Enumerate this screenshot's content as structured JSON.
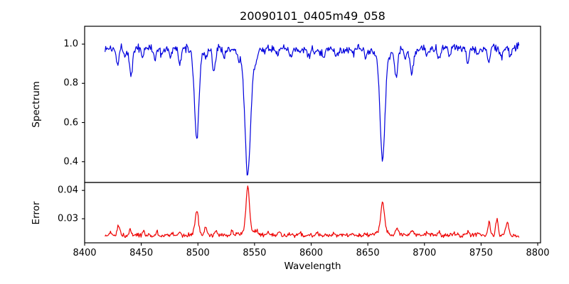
{
  "figure": {
    "title": "20090101_0405m49_058",
    "xlabel": "Wavelength",
    "background_color": "#ffffff",
    "axis_color": "#000000"
  },
  "chart_data": [
    {
      "type": "line",
      "name": "spectrum-panel",
      "title": "20090101_0405m49_058",
      "ylabel": "Spectrum",
      "xlabel": "Wavelength",
      "line_color": "#0000dd",
      "xlim": [
        8400,
        8802.5
      ],
      "ylim": [
        0.294,
        1.091
      ],
      "ytick_values": [
        1.0,
        0.8,
        0.6,
        0.4
      ],
      "ytick_labels": [
        "1.0",
        "0.8",
        "0.6",
        "0.4"
      ],
      "grid": false,
      "legend": null,
      "data_x_start": 8418,
      "data_x_end": 8784,
      "sample_step": 0.6,
      "continuum_level": 0.976,
      "noise_amplitude": 0.013,
      "absorption_lines": [
        {
          "center": 8429,
          "depth": 0.075,
          "width": 1.2
        },
        {
          "center": 8436,
          "depth": 0.04,
          "width": 1.0
        },
        {
          "center": 8441,
          "depth": 0.15,
          "width": 1.4
        },
        {
          "center": 8451,
          "depth": 0.045,
          "width": 1.0
        },
        {
          "center": 8462,
          "depth": 0.05,
          "width": 1.1
        },
        {
          "center": 8468,
          "depth": 0.04,
          "width": 1.0
        },
        {
          "center": 8476,
          "depth": 0.04,
          "width": 1.0
        },
        {
          "center": 8484,
          "depth": 0.085,
          "width": 1.3
        },
        {
          "center": 8499,
          "depth": 0.43,
          "width": 1.9
        },
        {
          "center": 8499,
          "depth": 0.04,
          "width": 4.5
        },
        {
          "center": 8507,
          "depth": 0.05,
          "width": 1.1
        },
        {
          "center": 8514,
          "depth": 0.12,
          "width": 1.4
        },
        {
          "center": 8523,
          "depth": 0.05,
          "width": 1.0
        },
        {
          "center": 8536,
          "depth": 0.04,
          "width": 1.0
        },
        {
          "center": 8544,
          "depth": 0.6,
          "width": 2.4
        },
        {
          "center": 8544,
          "depth": 0.05,
          "width": 6.0
        },
        {
          "center": 8551,
          "depth": 0.04,
          "width": 1.2
        },
        {
          "center": 8570,
          "depth": 0.035,
          "width": 1.0
        },
        {
          "center": 8582,
          "depth": 0.05,
          "width": 1.2
        },
        {
          "center": 8598,
          "depth": 0.04,
          "width": 1.0
        },
        {
          "center": 8611,
          "depth": 0.035,
          "width": 1.0
        },
        {
          "center": 8622,
          "depth": 0.035,
          "width": 1.0
        },
        {
          "center": 8637,
          "depth": 0.03,
          "width": 1.0
        },
        {
          "center": 8648,
          "depth": 0.045,
          "width": 1.1
        },
        {
          "center": 8663,
          "depth": 0.52,
          "width": 2.1
        },
        {
          "center": 8663,
          "depth": 0.05,
          "width": 5.0
        },
        {
          "center": 8675,
          "depth": 0.135,
          "width": 1.4
        },
        {
          "center": 8683,
          "depth": 0.05,
          "width": 1.0
        },
        {
          "center": 8689,
          "depth": 0.12,
          "width": 1.5
        },
        {
          "center": 8702,
          "depth": 0.04,
          "width": 1.0
        },
        {
          "center": 8713,
          "depth": 0.05,
          "width": 1.1
        },
        {
          "center": 8722,
          "depth": 0.04,
          "width": 1.0
        },
        {
          "center": 8738,
          "depth": 0.075,
          "width": 1.3
        },
        {
          "center": 8747,
          "depth": 0.04,
          "width": 1.0
        },
        {
          "center": 8757,
          "depth": 0.07,
          "width": 1.2
        },
        {
          "center": 8768,
          "depth": 0.05,
          "width": 1.0
        },
        {
          "center": 8776,
          "depth": 0.055,
          "width": 1.2
        }
      ],
      "notable_features": "Ca II infrared triplet absorption lines near 8499, 8544, 8663 with minima ~0.51, ~0.33, ~0.41"
    },
    {
      "type": "line",
      "name": "error-panel",
      "ylabel": "Error",
      "line_color": "#ee0000",
      "xlim": [
        8400,
        8802.5
      ],
      "ylim": [
        0.0215,
        0.0428
      ],
      "ytick_values": [
        0.04,
        0.03
      ],
      "ytick_labels": [
        "0.04",
        "0.03"
      ],
      "grid": false,
      "legend": null,
      "data_x_start": 8418,
      "data_x_end": 8784,
      "sample_step": 0.6,
      "baseline_level": 0.0242,
      "noise_amplitude": 0.00045,
      "emission_peaks": [
        {
          "center": 8423,
          "height": 0.0008,
          "width": 1.0
        },
        {
          "center": 8430,
          "height": 0.0036,
          "width": 1.1
        },
        {
          "center": 8440,
          "height": 0.0018,
          "width": 1.1
        },
        {
          "center": 8452,
          "height": 0.0013,
          "width": 1.0
        },
        {
          "center": 8464,
          "height": 0.0011,
          "width": 1.0
        },
        {
          "center": 8477,
          "height": 0.0009,
          "width": 1.0
        },
        {
          "center": 8484,
          "height": 0.0013,
          "width": 1.0
        },
        {
          "center": 8499,
          "height": 0.008,
          "width": 1.4
        },
        {
          "center": 8499,
          "height": 0.0008,
          "width": 4.0
        },
        {
          "center": 8507,
          "height": 0.0026,
          "width": 1.1
        },
        {
          "center": 8516,
          "height": 0.0018,
          "width": 1.1
        },
        {
          "center": 8530,
          "height": 0.0015,
          "width": 1.0
        },
        {
          "center": 8544,
          "height": 0.0155,
          "width": 1.5
        },
        {
          "center": 8544,
          "height": 0.0015,
          "width": 5.0
        },
        {
          "center": 8552,
          "height": 0.0013,
          "width": 1.4
        },
        {
          "center": 8562,
          "height": 0.0008,
          "width": 1.0
        },
        {
          "center": 8572,
          "height": 0.0012,
          "width": 1.0
        },
        {
          "center": 8582,
          "height": 0.0008,
          "width": 1.0
        },
        {
          "center": 8590,
          "height": 0.001,
          "width": 1.0
        },
        {
          "center": 8605,
          "height": 0.0007,
          "width": 1.0
        },
        {
          "center": 8620,
          "height": 0.0007,
          "width": 1.0
        },
        {
          "center": 8635,
          "height": 0.0006,
          "width": 1.0
        },
        {
          "center": 8648,
          "height": 0.0009,
          "width": 1.0
        },
        {
          "center": 8663,
          "height": 0.0105,
          "width": 1.6
        },
        {
          "center": 8663,
          "height": 0.0012,
          "width": 5.0
        },
        {
          "center": 8676,
          "height": 0.0025,
          "width": 1.2
        },
        {
          "center": 8689,
          "height": 0.002,
          "width": 1.2
        },
        {
          "center": 8702,
          "height": 0.0008,
          "width": 1.0
        },
        {
          "center": 8713,
          "height": 0.001,
          "width": 1.0
        },
        {
          "center": 8726,
          "height": 0.0008,
          "width": 1.0
        },
        {
          "center": 8738,
          "height": 0.0012,
          "width": 1.0
        },
        {
          "center": 8747,
          "height": 0.0008,
          "width": 1.0
        },
        {
          "center": 8757,
          "height": 0.0045,
          "width": 1.1
        },
        {
          "center": 8764,
          "height": 0.0058,
          "width": 1.0
        },
        {
          "center": 8773,
          "height": 0.0048,
          "width": 1.2
        }
      ],
      "notable_features": "error baseline ~0.024 with peaks ~0.033, ~0.041, ~0.036 at the three Ca II line centers"
    }
  ],
  "x_axis": {
    "label": "Wavelength",
    "tick_values": [
      8400,
      8450,
      8500,
      8550,
      8600,
      8650,
      8700,
      8750,
      8800
    ],
    "tick_labels": [
      "8400",
      "8450",
      "8500",
      "8550",
      "8600",
      "8650",
      "8700",
      "8750",
      "8800"
    ]
  },
  "noise_seed": 1337
}
